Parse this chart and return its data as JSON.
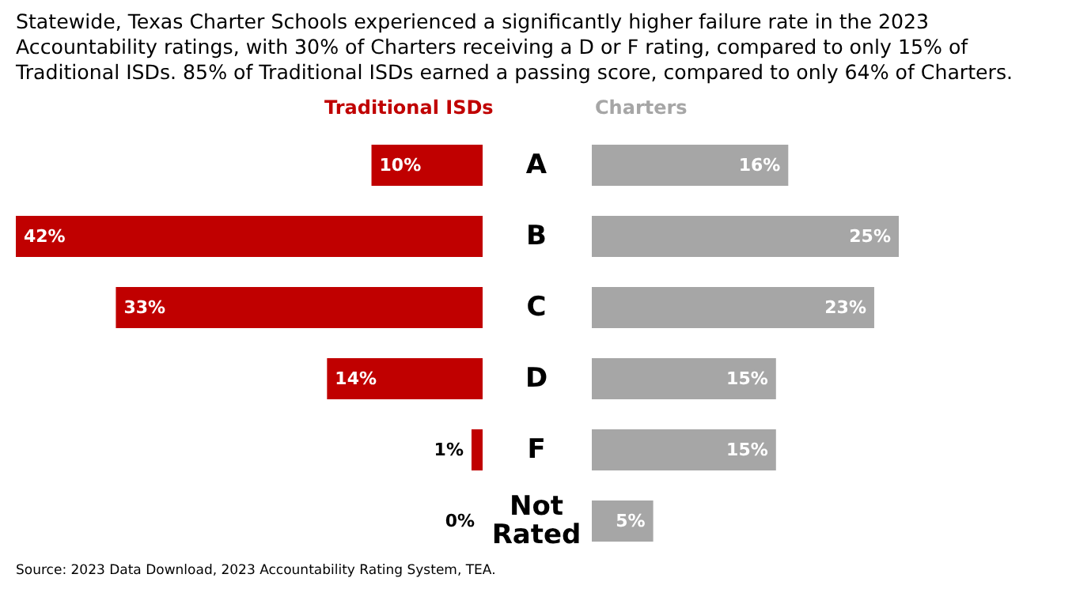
{
  "chart_data": [
    {
      "type": "bar",
      "orientation": "horizontal",
      "title": "Statewide, Texas Charter Schools experienced a significantly higher failure rate in the 2023 Accountability ratings, with 30% of Charters receiving a D or F rating, compared to only 15% of Traditional ISDs. 85% of Traditional ISDs earned a passing score, compared to only 64% of Charters.",
      "annotations": [
        "Source: 2023 Data Download, 2023 Accountability Rating System, TEA."
      ],
      "categories": [
        "A",
        "B",
        "C",
        "D",
        "F",
        "Not Rated"
      ],
      "tick_labels": "y",
      "series": [
        {
          "name": "Traditional ISDs",
          "color": "#c00000",
          "values": [
            10,
            42,
            33,
            14,
            1,
            0
          ],
          "value_labels": [
            "10%",
            "42%",
            "33%",
            "14%",
            "1%",
            "0%"
          ]
        }
      ]
    },
    {
      "type": "bar",
      "orientation": "horizontal",
      "categories": [
        "A",
        "B",
        "C",
        "D",
        "F",
        "Not Rated"
      ],
      "tick_labels": false,
      "series": [
        {
          "name": "Charters",
          "color": "#a6a6a6",
          "values": [
            16,
            25,
            23,
            15,
            15,
            5
          ],
          "value_labels": [
            "16%",
            "25%",
            "23%",
            "15%",
            "15%",
            "5%"
          ]
        }
      ]
    }
  ]
}
